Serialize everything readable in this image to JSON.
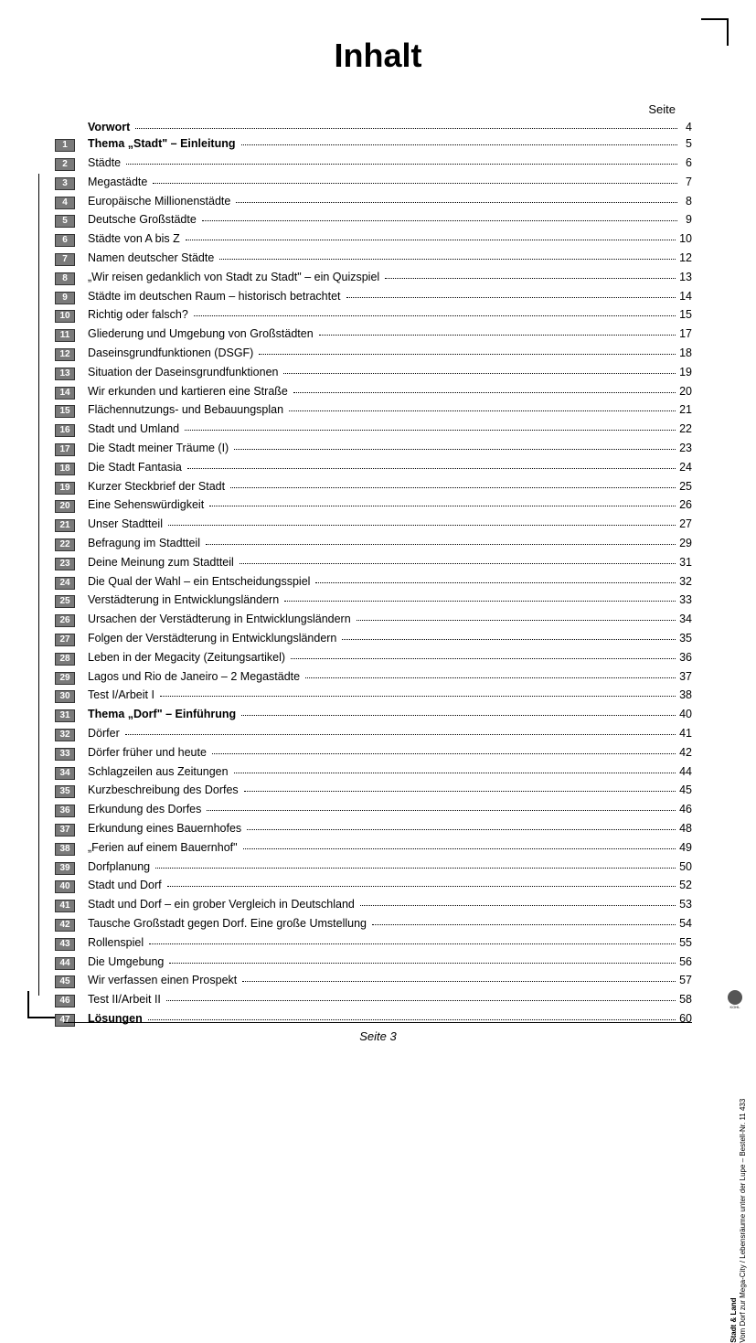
{
  "title": "Inhalt",
  "page_header": "Seite",
  "footer": "Seite 3",
  "sidebar": {
    "line1": "Stadt & Land",
    "line2": "Vom Dorf zur Mega-City / Lebensräume unter der Lupe  –  Bestell-Nr. 11 433",
    "publisher": "KOHL"
  },
  "entries": [
    {
      "num": "",
      "title": "Vorwort",
      "page": "4",
      "bold": true
    },
    {
      "num": "1",
      "title": "Thema „Stadt\" – Einleitung",
      "page": "5",
      "bold": true
    },
    {
      "num": "2",
      "title": "Städte",
      "page": "6"
    },
    {
      "num": "3",
      "title": "Megastädte",
      "page": "7"
    },
    {
      "num": "4",
      "title": "Europäische Millionenstädte",
      "page": "8"
    },
    {
      "num": "5",
      "title": "Deutsche Großstädte",
      "page": "9"
    },
    {
      "num": "6",
      "title": "Städte von A bis Z",
      "page": "10"
    },
    {
      "num": "7",
      "title": "Namen deutscher Städte",
      "page": "12"
    },
    {
      "num": "8",
      "title": "„Wir reisen gedanklich von Stadt zu Stadt\" – ein Quizspiel",
      "page": "13"
    },
    {
      "num": "9",
      "title": "Städte im deutschen Raum – historisch betrachtet",
      "page": "14"
    },
    {
      "num": "10",
      "title": "Richtig oder falsch?",
      "page": "15"
    },
    {
      "num": "11",
      "title": "Gliederung und Umgebung von Großstädten",
      "page": "17"
    },
    {
      "num": "12",
      "title": "Daseinsgrundfunktionen (DSGF)",
      "page": "18"
    },
    {
      "num": "13",
      "title": "Situation der Daseinsgrundfunktionen",
      "page": "19"
    },
    {
      "num": "14",
      "title": "Wir erkunden und kartieren eine Straße",
      "page": "20"
    },
    {
      "num": "15",
      "title": "Flächennutzungs- und Bebauungsplan",
      "page": "21"
    },
    {
      "num": "16",
      "title": "Stadt und Umland",
      "page": "22"
    },
    {
      "num": "17",
      "title": "Die Stadt meiner Träume (I)",
      "page": "23"
    },
    {
      "num": "18",
      "title": "Die Stadt Fantasia",
      "page": "24"
    },
    {
      "num": "19",
      "title": "Kurzer Steckbrief der Stadt",
      "page": "25"
    },
    {
      "num": "20",
      "title": "Eine Sehenswürdigkeit",
      "page": "26"
    },
    {
      "num": "21",
      "title": "Unser Stadtteil",
      "page": "27"
    },
    {
      "num": "22",
      "title": "Befragung im Stadtteil",
      "page": "29"
    },
    {
      "num": "23",
      "title": "Deine Meinung zum Stadtteil",
      "page": "31"
    },
    {
      "num": "24",
      "title": "Die Qual der Wahl – ein Entscheidungsspiel",
      "page": "32"
    },
    {
      "num": "25",
      "title": "Verstädterung in Entwicklungsländern",
      "page": "33"
    },
    {
      "num": "26",
      "title": "Ursachen der Verstädterung in Entwicklungsländern",
      "page": "34"
    },
    {
      "num": "27",
      "title": "Folgen der Verstädterung in Entwicklungsländern",
      "page": "35"
    },
    {
      "num": "28",
      "title": "Leben in der Megacity (Zeitungsartikel)",
      "page": "36"
    },
    {
      "num": "29",
      "title": "Lagos und Rio de Janeiro – 2 Megastädte",
      "page": "37"
    },
    {
      "num": "30",
      "title": "Test I/Arbeit I",
      "page": "38"
    },
    {
      "num": "31",
      "title": "Thema „Dorf\" – Einführung",
      "page": "40",
      "bold": true
    },
    {
      "num": "32",
      "title": "Dörfer",
      "page": "41"
    },
    {
      "num": "33",
      "title": "Dörfer früher und heute",
      "page": "42"
    },
    {
      "num": "34",
      "title": "Schlagzeilen aus Zeitungen",
      "page": "44"
    },
    {
      "num": "35",
      "title": "Kurzbeschreibung des Dorfes",
      "page": "45"
    },
    {
      "num": "36",
      "title": "Erkundung des Dorfes",
      "page": "46"
    },
    {
      "num": "37",
      "title": "Erkundung eines Bauernhofes",
      "page": "48"
    },
    {
      "num": "38",
      "title": "„Ferien auf einem Bauernhof\"",
      "page": "49"
    },
    {
      "num": "39",
      "title": "Dorfplanung",
      "page": "50"
    },
    {
      "num": "40",
      "title": "Stadt und Dorf",
      "page": "52"
    },
    {
      "num": "41",
      "title": "Stadt und Dorf – ein grober Vergleich in Deutschland",
      "page": "53"
    },
    {
      "num": "42",
      "title": "Tausche Großstadt gegen Dorf. Eine große Umstellung",
      "page": "54"
    },
    {
      "num": "43",
      "title": "Rollenspiel",
      "page": "55"
    },
    {
      "num": "44",
      "title": "Die Umgebung",
      "page": "56"
    },
    {
      "num": "45",
      "title": "Wir verfassen einen Prospekt",
      "page": "57"
    },
    {
      "num": "46",
      "title": "Test II/Arbeit II",
      "page": "58"
    },
    {
      "num": "47",
      "title": "Lösungen",
      "page": "60",
      "bold": true
    }
  ]
}
